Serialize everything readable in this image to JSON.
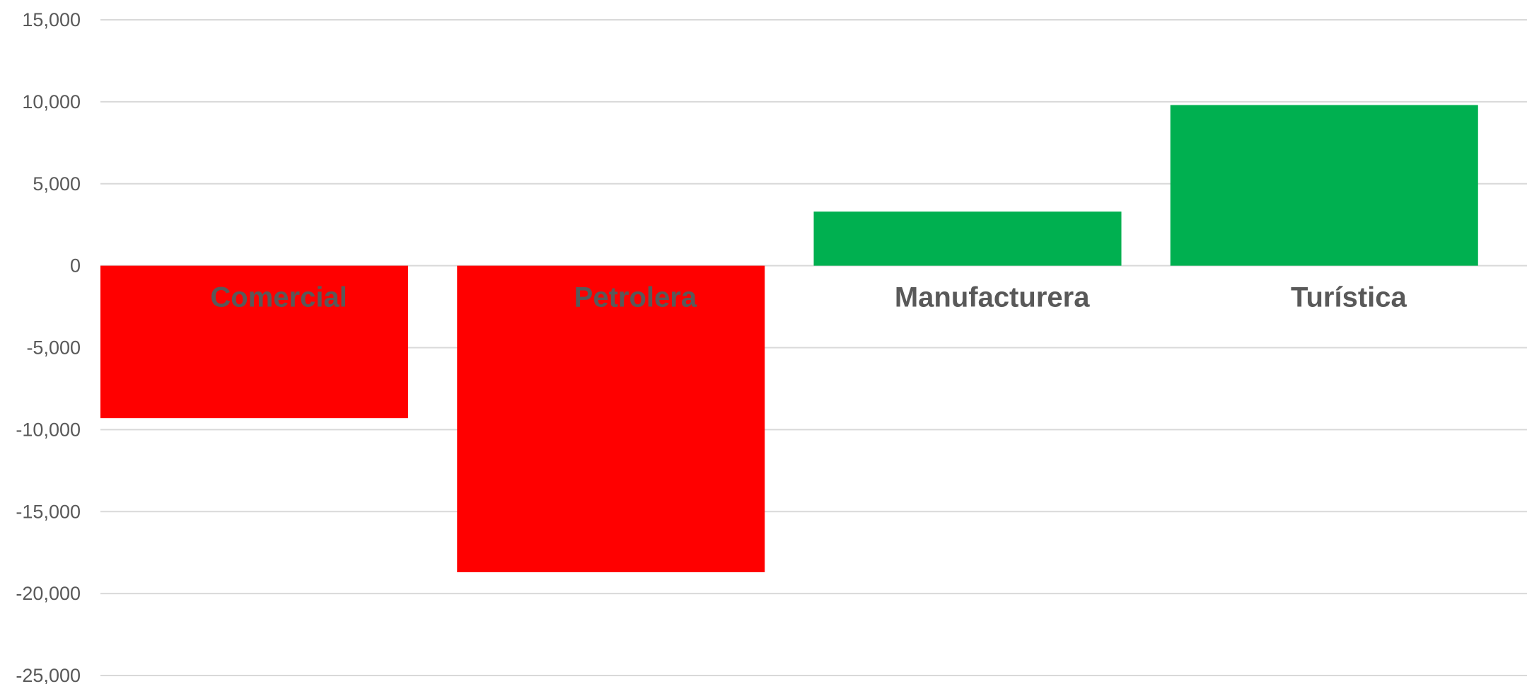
{
  "chart_data": {
    "type": "bar",
    "title": "",
    "xlabel": "",
    "ylabel": "",
    "categories": [
      "Comercial",
      "Petrolera",
      "Manufacturera",
      "Turística"
    ],
    "values": [
      -9300,
      -18700,
      3300,
      9800
    ],
    "ylim": [
      -25000,
      15000
    ],
    "yticks": [
      15000,
      10000,
      5000,
      0,
      -5000,
      -10000,
      -15000,
      -20000,
      -25000
    ],
    "ytick_labels": [
      "15,000",
      "10,000",
      "5,000",
      "0",
      "-5,000",
      "-10,000",
      "-15,000",
      "-20,000",
      "-25,000"
    ],
    "grid": true,
    "legend": "none",
    "colors": {
      "negative": "#ff0000",
      "positive": "#00b050",
      "grid": "#d9d9d9",
      "text": "#595959"
    }
  }
}
